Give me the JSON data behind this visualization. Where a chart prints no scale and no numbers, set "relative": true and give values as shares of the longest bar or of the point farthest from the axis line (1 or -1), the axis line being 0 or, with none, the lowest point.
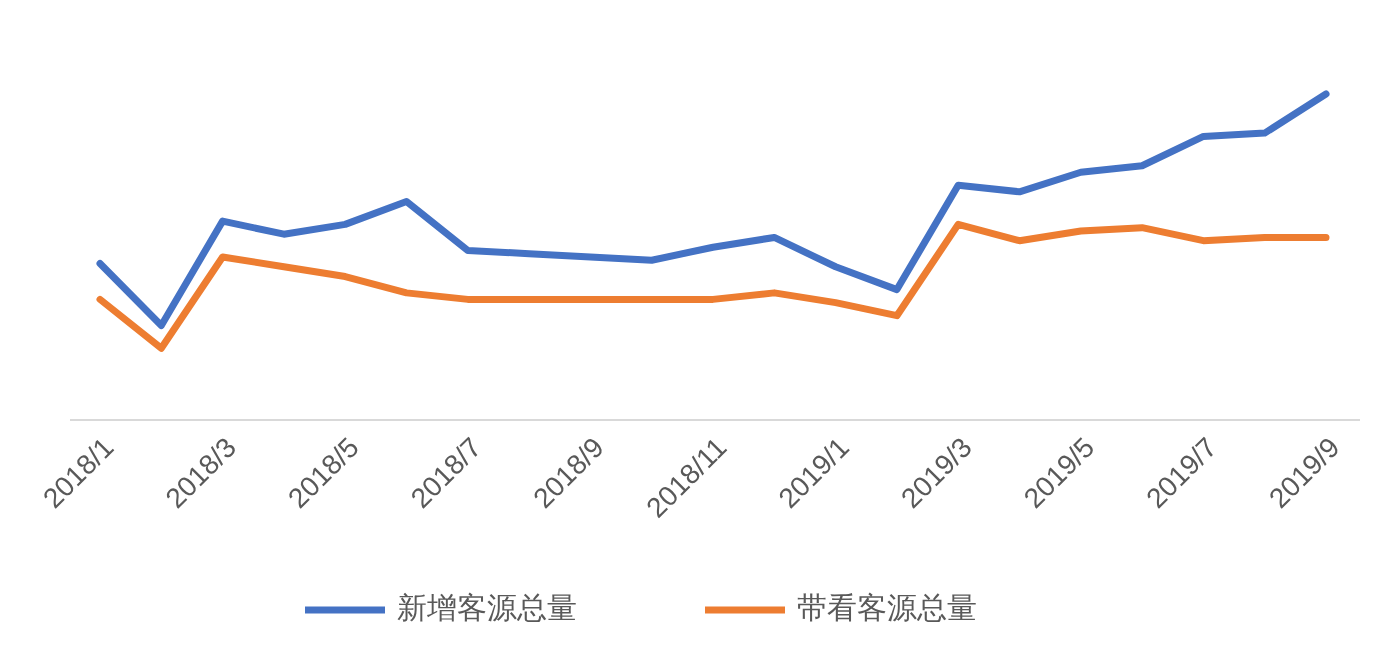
{
  "chart_data": {
    "type": "line",
    "relative": true,
    "legend": "bottom",
    "categories": [
      "2018/1",
      null,
      "2018/3",
      null,
      "2018/5",
      null,
      "2018/7",
      null,
      "2018/9",
      null,
      "2018/11",
      null,
      "2019/1",
      null,
      "2019/3",
      null,
      "2019/5",
      null,
      "2019/7",
      null,
      "2019/9"
    ],
    "series": [
      {
        "name": "新增客源总量",
        "color": "#4472c4",
        "values": [
          0.48,
          0.29,
          0.61,
          0.57,
          0.6,
          0.67,
          0.52,
          0.51,
          0.5,
          0.49,
          0.53,
          0.56,
          0.47,
          0.4,
          0.72,
          0.7,
          0.76,
          0.78,
          0.87,
          0.88,
          1
        ]
      },
      {
        "name": "带看客源总量",
        "color": "#ed7d31",
        "values": [
          0.37,
          0.22,
          0.5,
          0.47,
          0.44,
          0.39,
          0.37,
          0.37,
          0.37,
          0.37,
          0.37,
          0.39,
          0.36,
          0.32,
          0.6,
          0.55,
          0.58,
          0.59,
          0.55,
          0.56,
          0.56
        ]
      }
    ]
  }
}
